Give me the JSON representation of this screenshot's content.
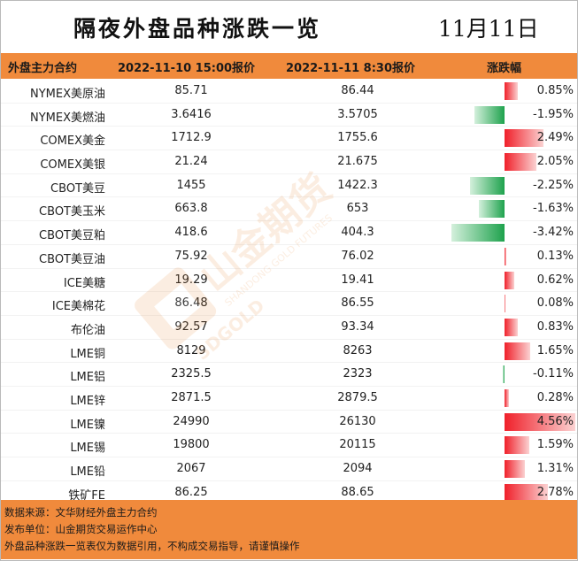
{
  "title": "隔夜外盘品种涨跌一览",
  "date": "11月11日",
  "headers": {
    "name": "外盘主力合约",
    "price_a": "2022-11-10 15:00报价",
    "price_b": "2022-11-11 8:30报价",
    "change": "涨跌幅"
  },
  "rows": [
    {
      "name": "NYMEX美原油",
      "a": "85.71",
      "b": "86.44",
      "pct": "0.85%",
      "value": 0.85
    },
    {
      "name": "NYMEX美燃油",
      "a": "3.6416",
      "b": "3.5705",
      "pct": "-1.95%",
      "value": -1.95
    },
    {
      "name": "COMEX美金",
      "a": "1712.9",
      "b": "1755.6",
      "pct": "2.49%",
      "value": 2.49
    },
    {
      "name": "COMEX美银",
      "a": "21.24",
      "b": "21.675",
      "pct": "2.05%",
      "value": 2.05
    },
    {
      "name": "CBOT美豆",
      "a": "1455",
      "b": "1422.3",
      "pct": "-2.25%",
      "value": -2.25
    },
    {
      "name": "CBOT美玉米",
      "a": "663.8",
      "b": "653",
      "pct": "-1.63%",
      "value": -1.63
    },
    {
      "name": "CBOT美豆粕",
      "a": "418.6",
      "b": "404.3",
      "pct": "-3.42%",
      "value": -3.42
    },
    {
      "name": "CBOT美豆油",
      "a": "75.92",
      "b": "76.02",
      "pct": "0.13%",
      "value": 0.13
    },
    {
      "name": "ICE美糖",
      "a": "19.29",
      "b": "19.41",
      "pct": "0.62%",
      "value": 0.62
    },
    {
      "name": "ICE美棉花",
      "a": "86.48",
      "b": "86.55",
      "pct": "0.08%",
      "value": 0.08
    },
    {
      "name": "布伦油",
      "a": "92.57",
      "b": "93.34",
      "pct": "0.83%",
      "value": 0.83
    },
    {
      "name": "LME铜",
      "a": "8129",
      "b": "8263",
      "pct": "1.65%",
      "value": 1.65
    },
    {
      "name": "LME铝",
      "a": "2325.5",
      "b": "2323",
      "pct": "-0.11%",
      "value": -0.11
    },
    {
      "name": "LME锌",
      "a": "2871.5",
      "b": "2879.5",
      "pct": "0.28%",
      "value": 0.28
    },
    {
      "name": "LME镍",
      "a": "24990",
      "b": "26130",
      "pct": "4.56%",
      "value": 4.56
    },
    {
      "name": "LME锡",
      "a": "19800",
      "b": "20115",
      "pct": "1.59%",
      "value": 1.59
    },
    {
      "name": "LME铅",
      "a": "2067",
      "b": "2094",
      "pct": "1.31%",
      "value": 1.31
    },
    {
      "name": "铁矿FE",
      "a": "86.25",
      "b": "88.65",
      "pct": "2.78%",
      "value": 2.78
    }
  ],
  "footer": {
    "source": "数据来源：文华财经外盘主力合约",
    "publisher": "发布单位：山金期货交易运作中心",
    "disclaimer": "外盘品种涨跌一览表仅为数据引用，不构成交易指导，请谨慎操作"
  },
  "watermark": {
    "text": "山金期货",
    "sub": "SHANDONG GOLD FUTURES",
    "logo": "SDGOLD"
  },
  "colors": {
    "header": "#f08a3c",
    "positive": "#f0202a",
    "negative": "#1ea24d"
  }
}
